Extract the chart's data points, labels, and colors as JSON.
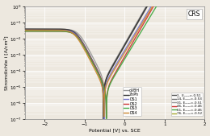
{
  "title": "CRS",
  "xlabel": "Potential [V] vs. SCE",
  "ylabel": "Stromdichte i [A/cm²]",
  "xlim": [
    -2.5,
    2.0
  ],
  "background": "#ede8df",
  "curves": [
    {
      "label": "oVBH",
      "color": "#999999",
      "lw": 1.0,
      "E_corr": -0.51,
      "i_corr": 3e-05,
      "ba": 0.1,
      "bc": 0.09,
      "i_lim": 0.04,
      "E_pass": -1.2,
      "i_pass": 0.0005
    },
    {
      "label": "ZnPh",
      "color": "#333333",
      "lw": 1.3,
      "E_corr": -0.53,
      "i_corr": 2e-05,
      "ba": 0.1,
      "bc": 0.09,
      "i_lim": 0.04,
      "E_pass": -1.2,
      "i_pass": 0.0004
    },
    {
      "label": "DS1",
      "color": "#7777cc",
      "lw": 1.0,
      "E_corr": -0.51,
      "i_corr": 1.5e-05,
      "ba": 0.105,
      "bc": 0.09,
      "i_lim": 0.035,
      "E_pass": -1.2,
      "i_pass": 0.0003
    },
    {
      "label": "DS2",
      "color": "#cc3333",
      "lw": 1.0,
      "E_corr": -0.46,
      "i_corr": 8e-06,
      "ba": 0.1,
      "bc": 0.09,
      "i_lim": 0.03,
      "E_pass": -1.2,
      "i_pass": 0.00025
    },
    {
      "label": "DS3",
      "color": "#44aa44",
      "lw": 1.0,
      "E_corr": -0.46,
      "i_corr": 7e-06,
      "ba": 0.105,
      "bc": 0.09,
      "i_lim": 0.03,
      "E_pass": -1.2,
      "i_pass": 0.0002
    },
    {
      "label": "DS4",
      "color": "#cc8833",
      "lw": 1.0,
      "E_corr": -0.52,
      "i_corr": 1e-05,
      "ba": 0.105,
      "bc": 0.09,
      "i_lim": 0.035,
      "E_pass": -1.2,
      "i_pass": 0.0003
    }
  ],
  "legend1": [
    {
      "label": "oVBH",
      "color": "#999999"
    },
    {
      "label": "ZnPh",
      "color": "#333333"
    },
    {
      "label": "DS1",
      "color": "#7777cc"
    },
    {
      "label": "DS2",
      "color": "#cc3333"
    },
    {
      "label": "DS3",
      "color": "#44aa44"
    },
    {
      "label": "DS4",
      "color": "#cc8833"
    }
  ],
  "legend2": [
    {
      "label": "1,  Eₙₒₕₕ=-0.51",
      "color": "#555555"
    },
    {
      "label": "14, Eₙₒₕₕ=-0.53",
      "color": "#777777"
    },
    {
      "label": "31, Eₙₒₕₕ=-0.51",
      "color": "#999999"
    },
    {
      "label": "46, Eₙₒₕₕ=-0.46",
      "color": "#cc3333"
    },
    {
      "label": "61, Eₙₒₕₕ=-0.46",
      "color": "#44aa44"
    },
    {
      "label": "76, Eₙₒₕₕ=-0.52",
      "color": "#aaaa33"
    }
  ]
}
